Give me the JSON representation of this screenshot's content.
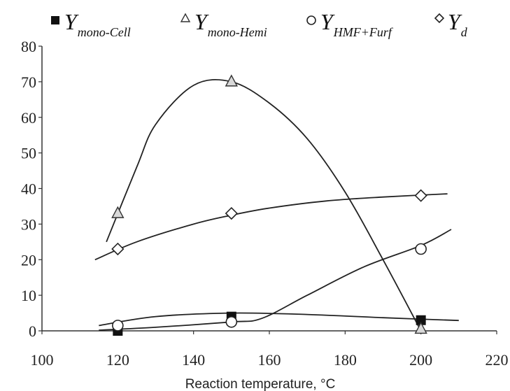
{
  "chart_data": {
    "type": "scatter",
    "title": "",
    "xlabel": "Reaction temperature, °C",
    "ylabel": "",
    "xlim": [
      100,
      220
    ],
    "ylim": [
      0,
      80
    ],
    "x_ticks": [
      100,
      120,
      140,
      160,
      180,
      200,
      220
    ],
    "y_ticks": [
      0,
      10,
      20,
      30,
      40,
      50,
      60,
      70,
      80
    ],
    "grid": false,
    "legend_position": "top",
    "series": [
      {
        "name": "Y mono-Cell",
        "legend_main": "Y",
        "legend_sub": "mono-Cell",
        "marker": "square",
        "x": [
          120,
          150,
          200
        ],
        "values": [
          0,
          4,
          3
        ],
        "trend_x": [
          115,
          130,
          150,
          170,
          190,
          210
        ],
        "trend_y": [
          1.5,
          4.0,
          5.0,
          4.6,
          3.7,
          2.9
        ]
      },
      {
        "name": "Y mono-Hemi",
        "legend_main": "Y",
        "legend_sub": "mono-Hemi",
        "marker": "triangle",
        "x": [
          120,
          150,
          200
        ],
        "values": [
          33,
          70,
          0.5
        ],
        "trend_x": [
          117,
          125,
          130,
          140,
          150,
          160,
          170,
          180,
          190,
          200
        ],
        "trend_y": [
          25,
          46,
          58,
          69,
          70,
          64,
          54,
          39,
          20,
          0
        ]
      },
      {
        "name": "Y HMF+Furf",
        "legend_main": "Y",
        "legend_sub": "HMF+Furf",
        "marker": "circle",
        "x": [
          120,
          150,
          200
        ],
        "values": [
          1.5,
          2.5,
          23
        ],
        "trend_x": [
          115,
          130,
          150,
          158,
          170,
          185,
          200,
          208
        ],
        "trend_y": [
          0.2,
          1.0,
          2.5,
          3.5,
          10,
          18,
          24,
          28.5
        ]
      },
      {
        "name": "Y d",
        "legend_main": "Y",
        "legend_sub": "d",
        "marker": "diamond",
        "x": [
          120,
          150,
          200
        ],
        "values": [
          23,
          33,
          38
        ],
        "trend_x": [
          114,
          125,
          140,
          150,
          160,
          175,
          190,
          207
        ],
        "trend_y": [
          20,
          25,
          30,
          32.5,
          34.5,
          36.5,
          37.6,
          38.5
        ]
      }
    ]
  }
}
